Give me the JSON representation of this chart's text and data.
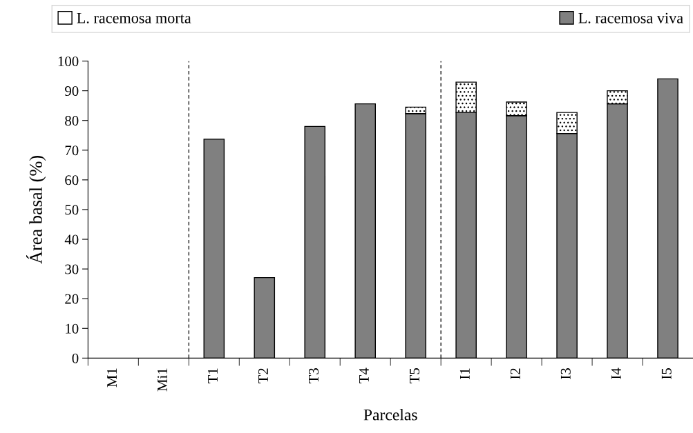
{
  "chart_data": {
    "type": "bar",
    "stacked": true,
    "xlabel": "Parcelas",
    "ylabel": "Área basal (%)",
    "categories": [
      "M1",
      "Mi1",
      "T1",
      "T2",
      "T3",
      "T4",
      "T5",
      "I1",
      "I2",
      "I3",
      "I4",
      "I5"
    ],
    "series": [
      {
        "name": "L. racemosa viva",
        "color": "#808080",
        "values": [
          null,
          null,
          73.7,
          27.1,
          78.0,
          85.6,
          82.3,
          82.7,
          81.6,
          75.6,
          85.6,
          94.0
        ]
      },
      {
        "name": "L. racemosa morta",
        "color": "#ffffff",
        "values": [
          null,
          null,
          null,
          null,
          null,
          null,
          2.2,
          10.2,
          4.6,
          7.1,
          4.4,
          null
        ]
      }
    ],
    "ylim": [
      0,
      100
    ],
    "yticks": [
      0,
      10,
      20,
      30,
      40,
      50,
      60,
      70,
      80,
      90,
      100
    ],
    "grid": false,
    "legend": "top"
  }
}
